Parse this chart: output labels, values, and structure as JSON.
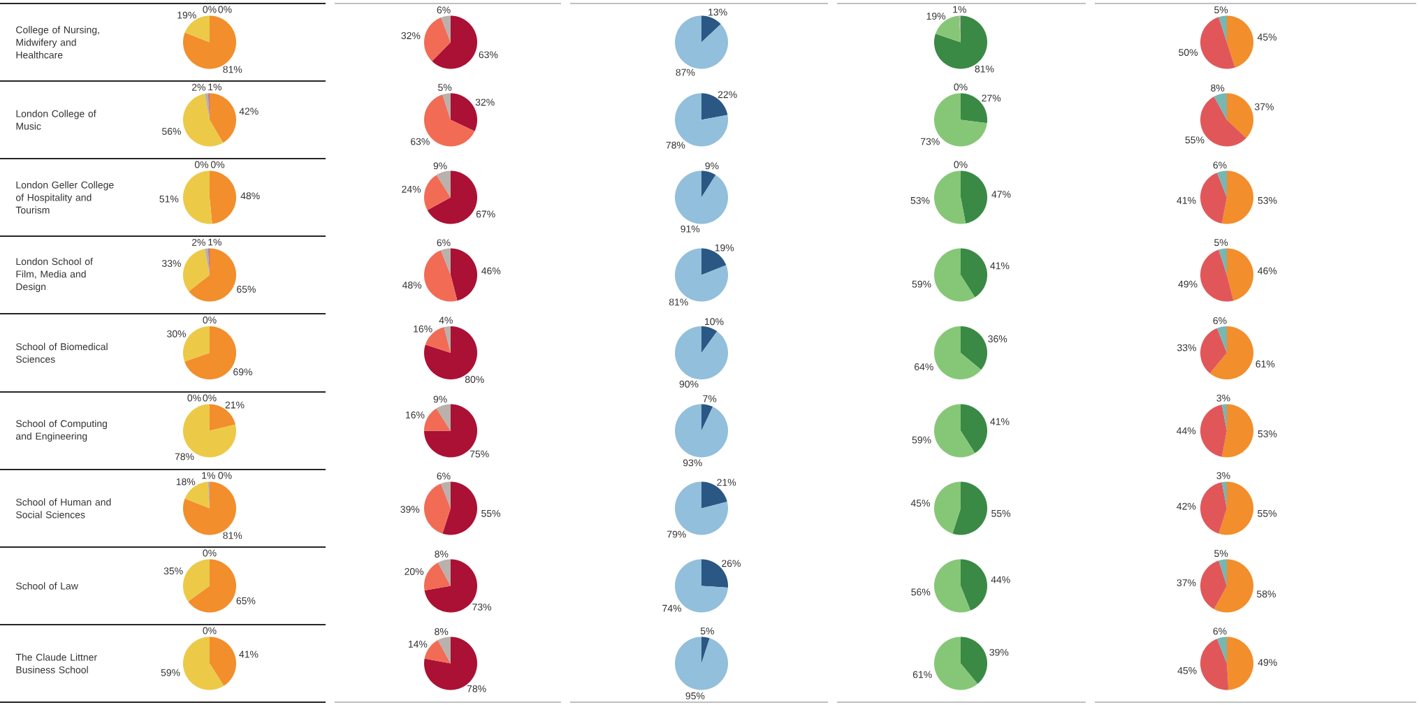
{
  "chart_data": [
    {
      "type": "other",
      "annotations": [
        "College of Nursing, Midwifery and Healthcare",
        "London College of Music",
        "London Geller College of Hospitality and Tourism",
        "London School of Film, Media and Design",
        "School of Biomedical Sciences",
        "School of Computing and Engineering",
        "School of Human and Social Sciences",
        "School of Law",
        "The Claude Littner Business School"
      ]
    },
    {
      "type": "pie",
      "categories": [
        null,
        null,
        null,
        null
      ],
      "colors": [
        "#f28e2b",
        "#edc948",
        "#bab0ac",
        "#b07aa1"
      ],
      "series": [
        {
          "values": [
            81,
            19,
            0,
            0
          ],
          "value_labels": [
            "81%",
            "19%",
            "0%",
            "0%"
          ]
        },
        {
          "values": [
            42,
            56,
            2,
            1
          ],
          "value_labels": [
            "42%",
            "56%",
            "2%",
            "1%"
          ]
        },
        {
          "values": [
            48,
            51,
            0,
            0
          ],
          "value_labels": [
            "48%",
            "51%",
            "0%",
            "0%"
          ]
        },
        {
          "values": [
            65,
            33,
            2,
            1
          ],
          "value_labels": [
            "65%",
            "33%",
            "2%",
            "1%"
          ]
        },
        {
          "values": [
            69,
            30,
            0,
            null
          ],
          "value_labels": [
            "69%",
            "30%",
            "0%",
            null
          ]
        },
        {
          "values": [
            21,
            78,
            0,
            0
          ],
          "value_labels": [
            "21%",
            "78%",
            "0%",
            "0%"
          ]
        },
        {
          "values": [
            81,
            18,
            1,
            0
          ],
          "value_labels": [
            "81%",
            "18%",
            "1%",
            "0%"
          ]
        },
        {
          "values": [
            65,
            35,
            0,
            null
          ],
          "value_labels": [
            "65%",
            "35%",
            "0%",
            null
          ]
        },
        {
          "values": [
            41,
            59,
            0,
            null
          ],
          "value_labels": [
            "41%",
            "59%",
            "0%",
            null
          ]
        }
      ]
    },
    {
      "type": "pie",
      "categories": [
        null,
        null,
        null
      ],
      "colors": [
        "#ab1134",
        "#f26b55",
        "#bab0ac"
      ],
      "series": [
        {
          "values": [
            63,
            32,
            6
          ],
          "value_labels": [
            "63%",
            "32%",
            "6%"
          ]
        },
        {
          "values": [
            32,
            63,
            5
          ],
          "value_labels": [
            "32%",
            "63%",
            "5%"
          ]
        },
        {
          "values": [
            67,
            24,
            9
          ],
          "value_labels": [
            "67%",
            "24%",
            "9%"
          ]
        },
        {
          "values": [
            46,
            48,
            6
          ],
          "value_labels": [
            "46%",
            "48%",
            "6%"
          ]
        },
        {
          "values": [
            80,
            16,
            4
          ],
          "value_labels": [
            "80%",
            "16%",
            "4%"
          ]
        },
        {
          "values": [
            75,
            16,
            9
          ],
          "value_labels": [
            "75%",
            "16%",
            "9%"
          ]
        },
        {
          "values": [
            55,
            39,
            6
          ],
          "value_labels": [
            "55%",
            "39%",
            "6%"
          ]
        },
        {
          "values": [
            73,
            20,
            8
          ],
          "value_labels": [
            "73%",
            "20%",
            "8%"
          ]
        },
        {
          "values": [
            78,
            14,
            8
          ],
          "value_labels": [
            "78%",
            "14%",
            "8%"
          ]
        }
      ]
    },
    {
      "type": "pie",
      "categories": [
        null,
        null
      ],
      "colors": [
        "#2a5783",
        "#92bfdb"
      ],
      "series": [
        {
          "values": [
            13,
            87
          ],
          "value_labels": [
            "13%",
            "87%"
          ]
        },
        {
          "values": [
            22,
            78
          ],
          "value_labels": [
            "22%",
            "78%"
          ]
        },
        {
          "values": [
            9,
            91
          ],
          "value_labels": [
            "9%",
            "91%"
          ]
        },
        {
          "values": [
            19,
            81
          ],
          "value_labels": [
            "19%",
            "81%"
          ]
        },
        {
          "values": [
            10,
            90
          ],
          "value_labels": [
            "10%",
            "90%"
          ]
        },
        {
          "values": [
            7,
            93
          ],
          "value_labels": [
            "7%",
            "93%"
          ]
        },
        {
          "values": [
            21,
            79
          ],
          "value_labels": [
            "21%",
            "79%"
          ]
        },
        {
          "values": [
            26,
            74
          ],
          "value_labels": [
            "26%",
            "74%"
          ]
        },
        {
          "values": [
            5,
            95
          ],
          "value_labels": [
            "5%",
            "95%"
          ]
        }
      ]
    },
    {
      "type": "pie",
      "categories": [
        null,
        null,
        null
      ],
      "colors": [
        "#3a8a45",
        "#86c777",
        "#bab0ac"
      ],
      "series": [
        {
          "values": [
            81,
            19,
            1
          ],
          "value_labels": [
            "81%",
            "19%",
            "1%"
          ]
        },
        {
          "values": [
            27,
            73,
            0
          ],
          "value_labels": [
            "27%",
            "73%",
            "0%"
          ]
        },
        {
          "values": [
            47,
            53,
            0
          ],
          "value_labels": [
            "47%",
            "53%",
            "0%"
          ]
        },
        {
          "values": [
            41,
            59,
            null
          ],
          "value_labels": [
            "41%",
            "59%",
            null
          ]
        },
        {
          "values": [
            36,
            64,
            null
          ],
          "value_labels": [
            "36%",
            "64%",
            null
          ]
        },
        {
          "values": [
            41,
            59,
            null
          ],
          "value_labels": [
            "41%",
            "59%",
            null
          ]
        },
        {
          "values": [
            55,
            45,
            null
          ],
          "value_labels": [
            "55%",
            "45%",
            null
          ]
        },
        {
          "values": [
            44,
            56,
            null
          ],
          "value_labels": [
            "44%",
            "56%",
            null
          ]
        },
        {
          "values": [
            39,
            61,
            null
          ],
          "value_labels": [
            "39%",
            "61%",
            null
          ]
        }
      ]
    },
    {
      "type": "pie",
      "categories": [
        null,
        null,
        null
      ],
      "colors": [
        "#f28e2b",
        "#e15759",
        "#76b7b2"
      ],
      "series": [
        {
          "values": [
            45,
            50,
            5
          ],
          "value_labels": [
            "45%",
            "50%",
            "5%"
          ]
        },
        {
          "values": [
            37,
            55,
            8
          ],
          "value_labels": [
            "37%",
            "55%",
            "8%"
          ]
        },
        {
          "values": [
            53,
            41,
            6
          ],
          "value_labels": [
            "53%",
            "41%",
            "6%"
          ]
        },
        {
          "values": [
            46,
            49,
            5
          ],
          "value_labels": [
            "46%",
            "49%",
            "5%"
          ]
        },
        {
          "values": [
            61,
            33,
            6
          ],
          "value_labels": [
            "61%",
            "33%",
            "6%"
          ]
        },
        {
          "values": [
            53,
            44,
            3
          ],
          "value_labels": [
            "53%",
            "44%",
            "3%"
          ]
        },
        {
          "values": [
            55,
            42,
            3
          ],
          "value_labels": [
            "55%",
            "42%",
            "3%"
          ]
        },
        {
          "values": [
            58,
            37,
            5
          ],
          "value_labels": [
            "58%",
            "37%",
            "5%"
          ]
        },
        {
          "values": [
            49,
            45,
            6
          ],
          "value_labels": [
            "49%",
            "45%",
            "6%"
          ]
        }
      ]
    }
  ]
}
